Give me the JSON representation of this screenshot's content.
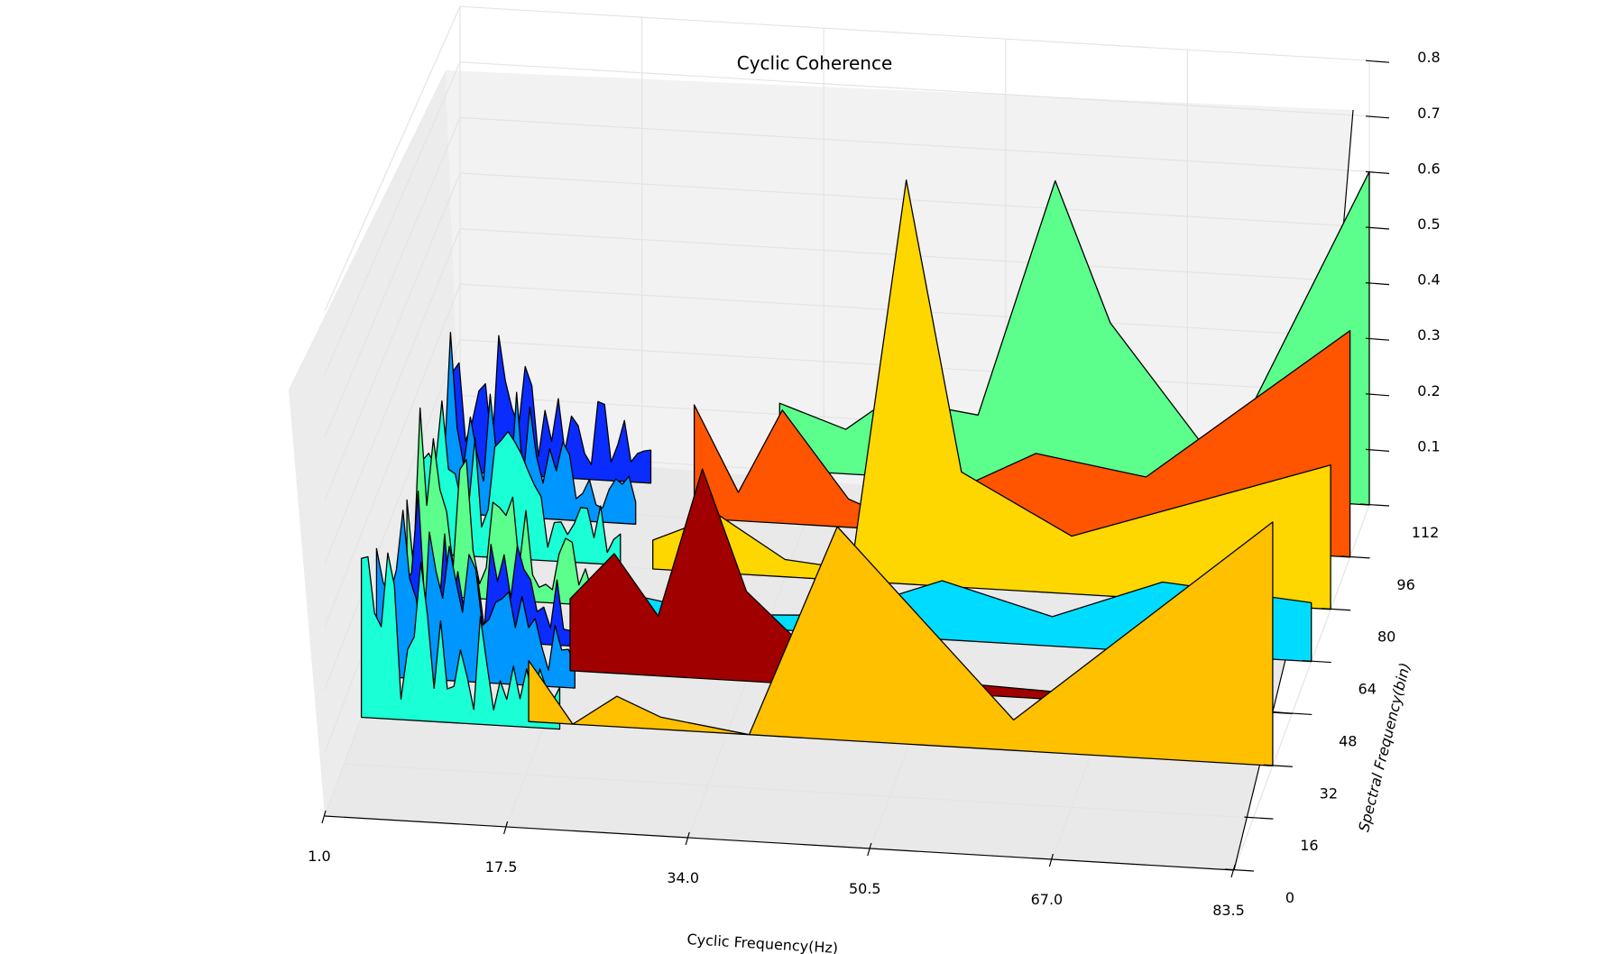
{
  "chart_data": {
    "type": "surface3d",
    "title": "Cyclic Coherence",
    "xlabel": "Cyclic Frequency(Hz)",
    "ylabel": "Spectral Frequency(bin)",
    "zlabel": "",
    "x_ticks": [
      "1.0",
      "17.5",
      "34.0",
      "50.5",
      "67.0",
      "83.5"
    ],
    "y_ticks": [
      "0",
      "16",
      "32",
      "48",
      "64",
      "80",
      "96",
      "112"
    ],
    "z_ticks": [
      "0.1",
      "0.2",
      "0.3",
      "0.4",
      "0.5",
      "0.6",
      "0.7",
      "0.8"
    ],
    "xlim": [
      1.0,
      83.5
    ],
    "ylim": [
      0,
      112
    ],
    "zlim": [
      0,
      0.8
    ],
    "grid": true,
    "colormap": "jet",
    "colors": {
      "green": "#5cff8c",
      "orange_red": "#ff5500",
      "yellow": "#ffd700",
      "cyan": "#00dcff",
      "dark_red": "#a00000",
      "amber": "#ffc000",
      "blue": "#0a2cff",
      "mid_blue": "#0096ff",
      "aqua": "#1affd5"
    },
    "series": [
      {
        "y": 112,
        "color": "#5cff8c",
        "x": [
          30,
          36,
          40,
          48,
          55,
          60,
          70,
          83.5
        ],
        "z": [
          0.12,
          0.08,
          0.14,
          0.12,
          0.55,
          0.3,
          0.05,
          0.6
        ]
      },
      {
        "y": 96,
        "color": "#ff5500",
        "x": [
          24,
          28,
          32,
          38,
          42,
          55,
          65,
          83.5
        ],
        "z": [
          0.2,
          0.05,
          0.2,
          0.05,
          0.02,
          0.15,
          0.12,
          0.4
        ]
      },
      {
        "y": 80,
        "color": "#ffd700",
        "x": [
          22,
          28,
          34,
          40,
          45,
          50,
          60,
          83.5
        ],
        "z": [
          0.05,
          0.1,
          0.03,
          0.02,
          0.7,
          0.2,
          0.1,
          0.25
        ]
      },
      {
        "y": 64,
        "color": "#00dcff",
        "x": [
          20,
          30,
          40,
          50,
          60,
          70,
          83.5
        ],
        "z": [
          0.05,
          0.02,
          0.03,
          0.1,
          0.05,
          0.12,
          0.1
        ]
      },
      {
        "y": 48,
        "color": "#a00000",
        "x": [
          18,
          22,
          26,
          30,
          34,
          40,
          50,
          83.5
        ],
        "z": [
          0.12,
          0.2,
          0.1,
          0.35,
          0.15,
          0.05,
          0.02,
          0.0
        ]
      },
      {
        "y": 32,
        "color": "#ffc000",
        "x": [
          16,
          20,
          24,
          28,
          36,
          44,
          60,
          83.5
        ],
        "z": [
          0.1,
          0.0,
          0.05,
          0.02,
          0.0,
          0.35,
          0.05,
          0.4
        ]
      }
    ]
  }
}
